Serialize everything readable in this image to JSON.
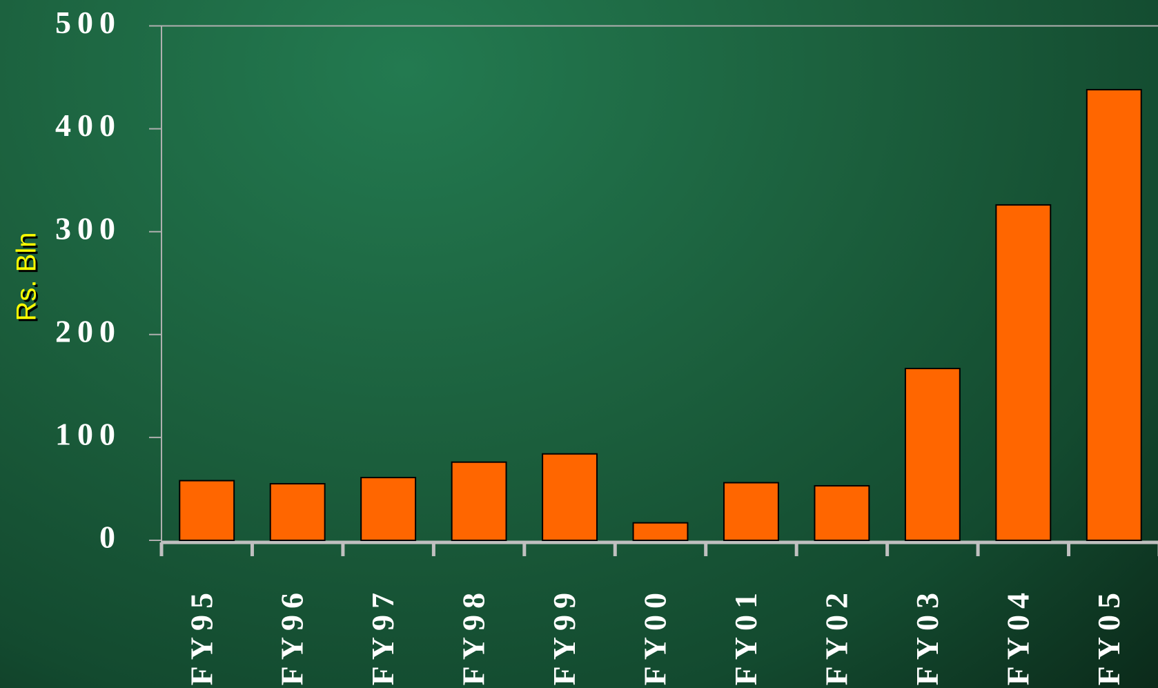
{
  "chart_data": {
    "type": "bar",
    "y_axis_label": "Rs. Bln",
    "categories": [
      "FY95",
      "FY96",
      "FY97",
      "FY98",
      "FY99",
      "FY00",
      "FY01",
      "FY02",
      "FY03",
      "FY04",
      "FY05"
    ],
    "values": [
      58,
      55,
      61,
      76,
      84,
      17,
      56,
      53,
      167,
      326,
      438
    ],
    "color": "#ff6600",
    "ylim": [
      0,
      500
    ],
    "yticks": [
      0,
      100,
      200,
      300,
      400,
      500
    ],
    "grid": false
  }
}
